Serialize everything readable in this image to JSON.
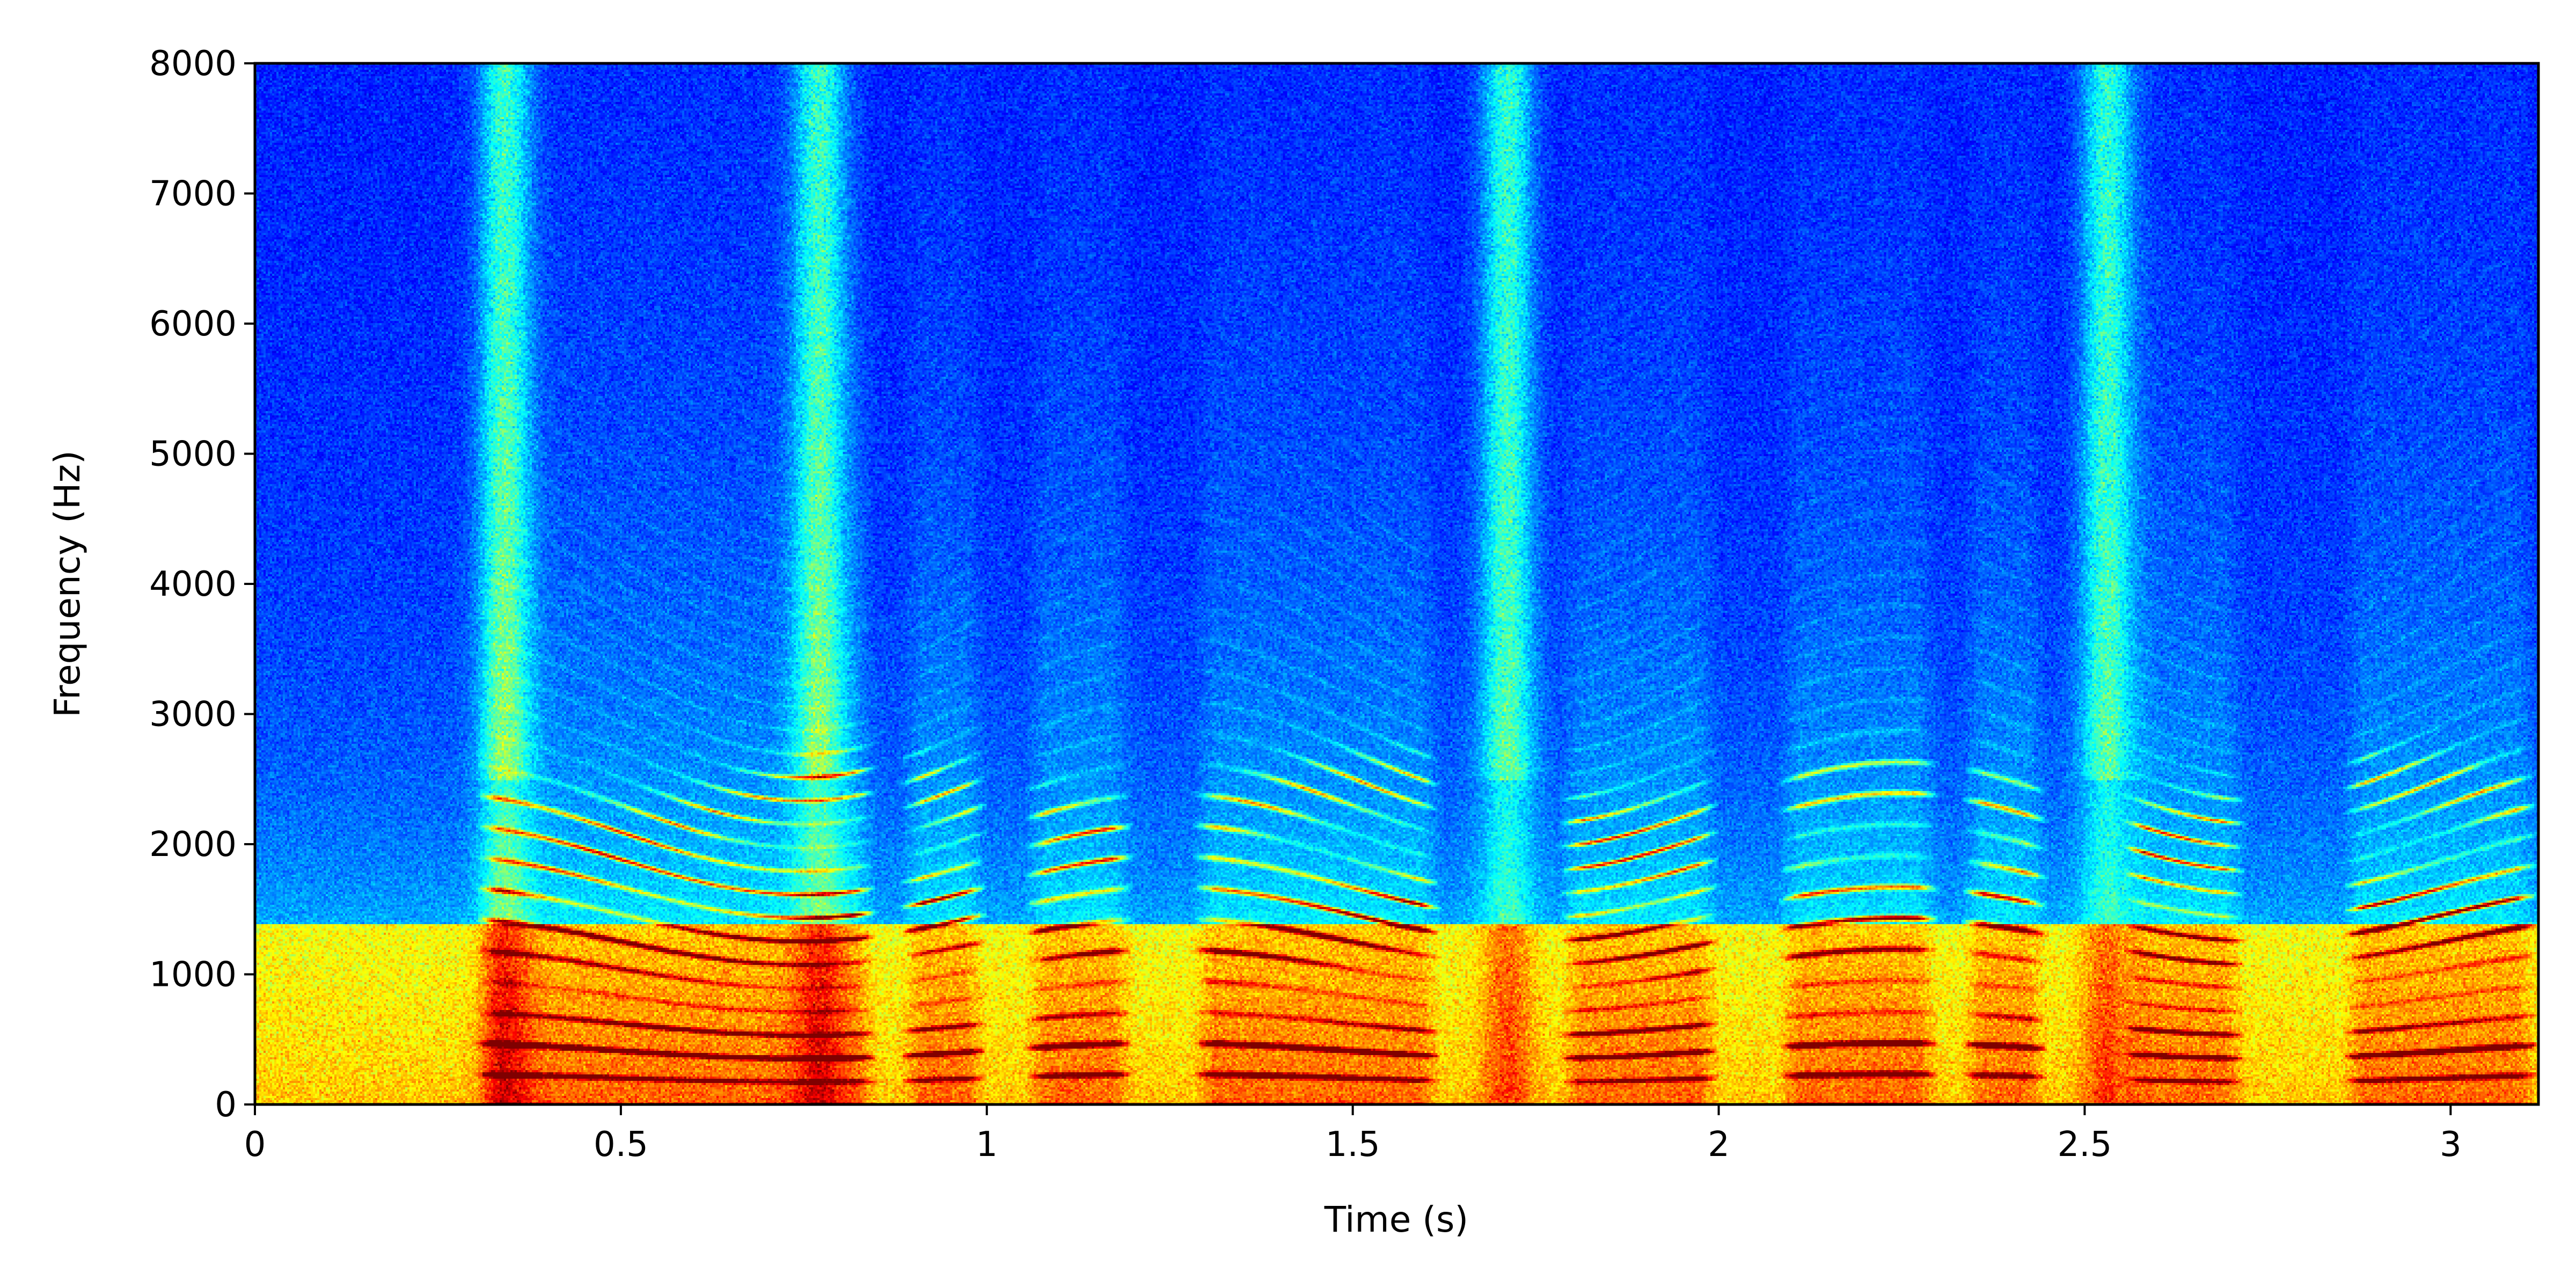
{
  "chart_data": {
    "type": "heatmap",
    "title": "",
    "xlabel": "Time (s)",
    "ylabel": "Frequency (Hz)",
    "xlim": [
      0,
      3.12
    ],
    "ylim": [
      0,
      8000
    ],
    "x_ticks": [
      0,
      0.5,
      1,
      1.5,
      2,
      2.5,
      3
    ],
    "x_tick_labels": [
      "0",
      "0.5",
      "1",
      "1.5",
      "2",
      "2.5",
      "3"
    ],
    "y_ticks": [
      0,
      1000,
      2000,
      3000,
      4000,
      5000,
      6000,
      7000,
      8000
    ],
    "y_tick_labels": [
      "0",
      "1000",
      "2000",
      "3000",
      "4000",
      "5000",
      "6000",
      "7000",
      "8000"
    ],
    "colormap": "jet",
    "grid": false,
    "legend": "none",
    "lowpass_step_hz": 1400,
    "broadband_bursts_s": [
      0.34,
      0.77,
      1.71,
      2.53
    ],
    "voiced_segments_s": [
      [
        0.3,
        0.85
      ],
      [
        0.88,
        1.0
      ],
      [
        1.05,
        1.2
      ],
      [
        1.28,
        1.62
      ],
      [
        1.78,
        2.0
      ],
      [
        2.08,
        2.3
      ],
      [
        2.33,
        2.45
      ],
      [
        2.55,
        2.72
      ],
      [
        2.85,
        3.12
      ]
    ],
    "formant_bands_hz": [
      300,
      500,
      1300,
      1700,
      2300
    ]
  }
}
